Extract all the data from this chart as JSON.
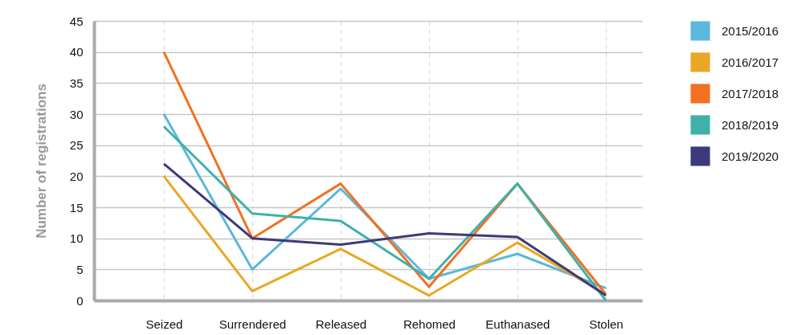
{
  "chart_data": {
    "type": "line",
    "ylabel": "Number of registrations",
    "categories": [
      "Seized",
      "Surrendered",
      "Released",
      "Rehomed",
      "Euthanased",
      "Stolen"
    ],
    "series": [
      {
        "name": "2015/2016",
        "color": "#5bb8db",
        "values": [
          30,
          5,
          18,
          3.5,
          7.5,
          2
        ]
      },
      {
        "name": "2016/2017",
        "color": "#e9a823",
        "values": [
          20,
          1.5,
          8.3,
          0.8,
          9.3,
          1
        ]
      },
      {
        "name": "2017/2018",
        "color": "#f37021",
        "values": [
          40,
          10,
          18.8,
          2.2,
          18.8,
          1
        ]
      },
      {
        "name": "2018/2019",
        "color": "#3fb1aa",
        "values": [
          28,
          14,
          12.8,
          3.5,
          18.8,
          0
        ]
      },
      {
        "name": "2019/2020",
        "color": "#3d3a7a",
        "values": [
          22,
          10,
          9,
          10.8,
          10.2,
          0.8
        ]
      }
    ],
    "ylim": [
      0,
      45
    ],
    "yticks": [
      0,
      5,
      10,
      15,
      20,
      25,
      30,
      35,
      40,
      45
    ],
    "grid": true,
    "legend": "top right"
  }
}
